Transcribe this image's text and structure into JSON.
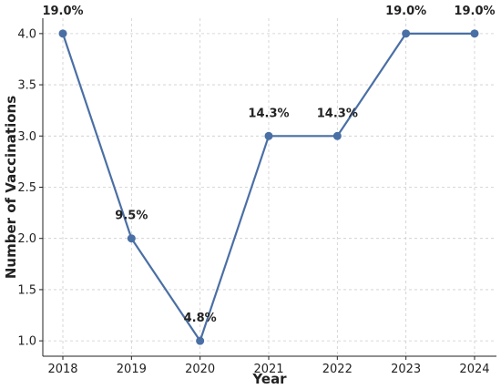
{
  "chart_data": {
    "type": "line",
    "title": "",
    "xlabel": "Year",
    "ylabel": "Number of Vaccinations",
    "x": [
      "2018",
      "2019",
      "2020",
      "2021",
      "2022",
      "2023",
      "2024"
    ],
    "series": [
      {
        "values": [
          4.0,
          2.0,
          1.0,
          3.0,
          3.0,
          4.0,
          4.0
        ],
        "data_labels": [
          "19.0%",
          "9.5%",
          "4.8%",
          "14.3%",
          "14.3%",
          "19.0%",
          "19.0%"
        ],
        "color": "#4a6fa5",
        "marker": "circle"
      }
    ],
    "ylim": [
      0.85,
      4.15
    ],
    "yticks": [
      "1.0",
      "1.5",
      "2.0",
      "2.5",
      "3.0",
      "3.5",
      "4.0"
    ],
    "grid": true,
    "grid_style": "dashed",
    "legend": "none"
  }
}
